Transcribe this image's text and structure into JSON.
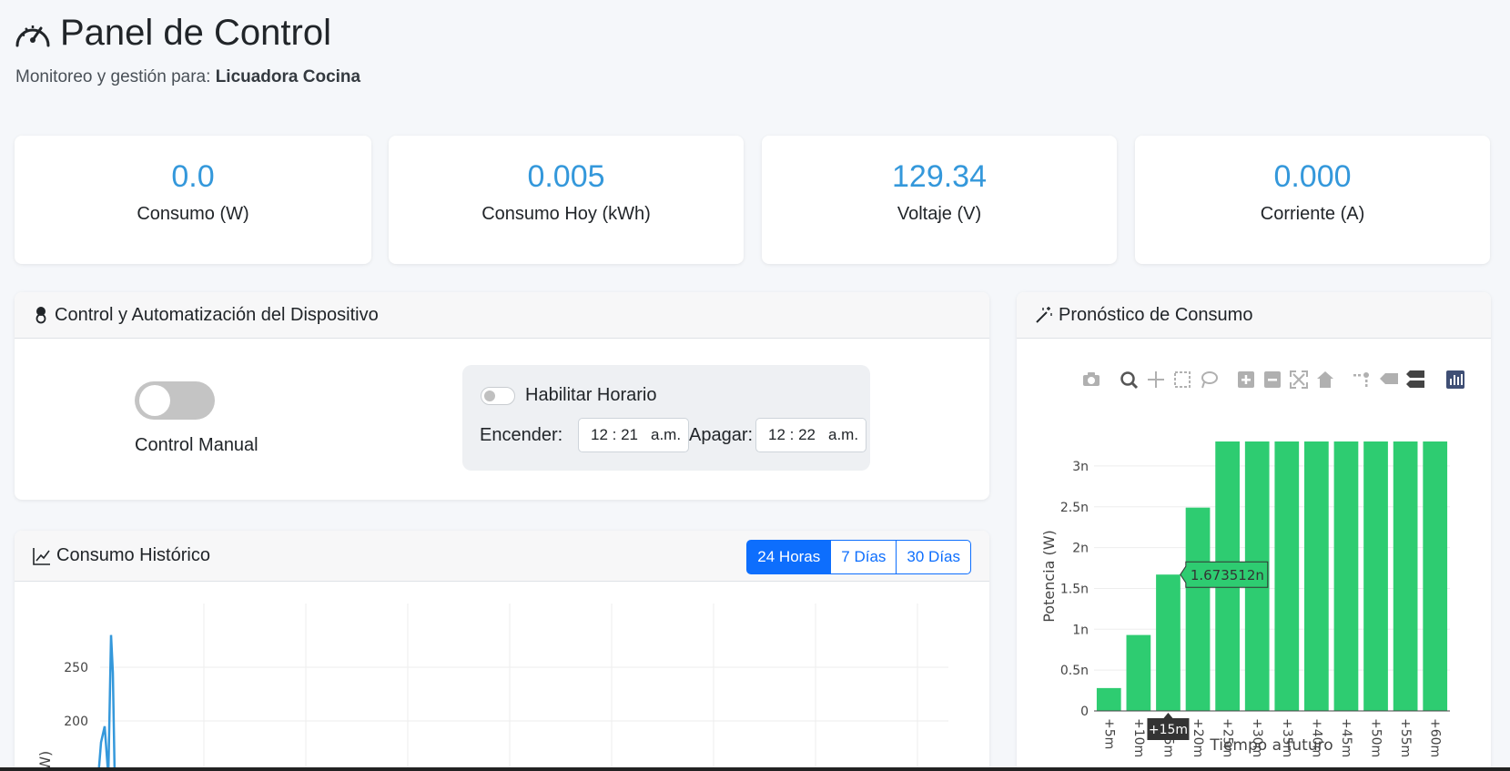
{
  "header": {
    "title": "Panel de Control",
    "subtitle_prefix": "Monitoreo y gestión para:",
    "device_name": "Licuadora Cocina"
  },
  "stats": [
    {
      "value": "0.0",
      "label": "Consumo (W)"
    },
    {
      "value": "0.005",
      "label": "Consumo Hoy (kWh)"
    },
    {
      "value": "129.34",
      "label": "Voltaje (V)"
    },
    {
      "value": "0.000",
      "label": "Corriente (A)"
    }
  ],
  "control": {
    "title": "Control y Automatización del Dispositivo",
    "manual_label": "Control Manual",
    "schedule_label": "Habilitar Horario",
    "on_label": "Encender:",
    "on_time": "12 : 21",
    "on_ampm": "a.m.",
    "off_label": "Apagar:",
    "off_time": "12 : 22",
    "off_ampm": "a.m."
  },
  "history": {
    "title": "Consumo Histórico",
    "buttons": [
      "24 Horas",
      "7 Días",
      "30 Días"
    ],
    "active": "24 Horas",
    "chart_data": {
      "type": "line",
      "ylabel": "(W)",
      "yticks": [
        "250",
        "200"
      ],
      "series": [
        {
          "values": [
            180,
            195,
            280,
            245
          ]
        }
      ]
    }
  },
  "forecast": {
    "title": "Pronóstico de Consumo",
    "hover_label": "1.673512n",
    "hover_x": "+15m",
    "chart_data": {
      "type": "bar",
      "categories": [
        "+5m",
        "+10m",
        "+15m",
        "+20m",
        "+25m",
        "+30m",
        "+35m",
        "+40m",
        "+45m",
        "+50m",
        "+55m",
        "+60m"
      ],
      "values": [
        0.28,
        0.93,
        1.67,
        2.49,
        3.3,
        3.3,
        3.3,
        3.3,
        3.3,
        3.3,
        3.3,
        3.3
      ],
      "value_unit": "n",
      "xlabel": "Tiempo a futuro",
      "ylabel": "Potencia (W)",
      "yticks": [
        0,
        0.5,
        1,
        1.5,
        2,
        2.5,
        3
      ],
      "ytick_labels": [
        "0",
        "0.5n",
        "1n",
        "1.5n",
        "2n",
        "2.5n",
        "3n"
      ],
      "ylim": [
        0,
        3.3
      ],
      "color": "#2ecc71"
    }
  },
  "colors": {
    "accent": "#3498db",
    "primary": "#0d6efd",
    "bar": "#2ecc71"
  }
}
